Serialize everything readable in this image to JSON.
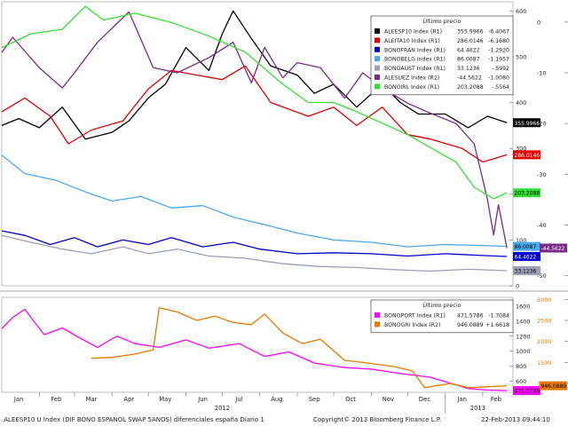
{
  "chart_data": [
    {
      "type": "line",
      "panel": "upper",
      "legend_title": "Último precio",
      "legend_position": "top-right",
      "grid": false,
      "x_ticks": [
        "Jan",
        "Feb",
        "Mar",
        "Apr",
        "May",
        "Jun",
        "Jul",
        "Aug",
        "Sep",
        "Oct",
        "Nov",
        "Dec",
        "Jan",
        "Feb"
      ],
      "y_left_ticks": [
        "600",
        "500",
        "400",
        "300",
        "200",
        "100",
        "0"
      ],
      "y_right_ticks": [
        "0",
        "-10",
        "-20",
        "-30",
        "-40",
        "-50"
      ],
      "y_left_range": [
        0,
        620
      ],
      "y_right_range": [
        -52,
        4
      ],
      "series": [
        {
          "name": ".ALEESP10 Index (R1)",
          "last": "355.9966",
          "change": "-6.4067",
          "color": "#000000",
          "axis": "R1",
          "points": [
            [
              "2012-01-01",
              350
            ],
            [
              "2012-01-15",
              365
            ],
            [
              "2012-02-01",
              345
            ],
            [
              "2012-02-20",
              390
            ],
            [
              "2012-03-10",
              320
            ],
            [
              "2012-04-01",
              335
            ],
            [
              "2012-04-15",
              360
            ],
            [
              "2012-05-01",
              410
            ],
            [
              "2012-05-15",
              440
            ],
            [
              "2012-06-01",
              520
            ],
            [
              "2012-06-20",
              470
            ],
            [
              "2012-07-01",
              550
            ],
            [
              "2012-07-10",
              600
            ],
            [
              "2012-07-25",
              540
            ],
            [
              "2012-08-10",
              480
            ],
            [
              "2012-09-01",
              460
            ],
            [
              "2012-09-15",
              420
            ],
            [
              "2012-10-01",
              440
            ],
            [
              "2012-10-20",
              390
            ],
            [
              "2012-11-10",
              440
            ],
            [
              "2012-11-25",
              400
            ],
            [
              "2012-12-10",
              375
            ],
            [
              "2013-01-01",
              375
            ],
            [
              "2013-01-20",
              345
            ],
            [
              "2013-02-05",
              370
            ],
            [
              "2013-02-21",
              356
            ]
          ]
        },
        {
          "name": ".ALEITA10 Index (R1)",
          "last": "286.0146",
          "change": "-6.1680",
          "color": "#e00000",
          "axis": "R1",
          "points": [
            [
              "2012-01-01",
              380
            ],
            [
              "2012-01-20",
              410
            ],
            [
              "2012-02-10",
              370
            ],
            [
              "2012-02-25",
              310
            ],
            [
              "2012-03-15",
              340
            ],
            [
              "2012-04-10",
              360
            ],
            [
              "2012-05-01",
              430
            ],
            [
              "2012-05-20",
              470
            ],
            [
              "2012-06-10",
              460
            ],
            [
              "2012-07-01",
              450
            ],
            [
              "2012-07-20",
              480
            ],
            [
              "2012-08-10",
              400
            ],
            [
              "2012-09-10",
              370
            ],
            [
              "2012-10-01",
              390
            ],
            [
              "2012-10-20",
              350
            ],
            [
              "2012-11-10",
              390
            ],
            [
              "2012-12-01",
              330
            ],
            [
              "2012-12-20",
              320
            ],
            [
              "2013-01-15",
              300
            ],
            [
              "2013-02-01",
              270
            ],
            [
              "2013-02-21",
              286
            ]
          ]
        },
        {
          "name": ".BONOFRAN Index (R1)",
          "last": "64.4622",
          "change": "-1.2920",
          "color": "#0000c8",
          "axis": "R1",
          "points": [
            [
              "2012-01-01",
              120
            ],
            [
              "2012-01-20",
              110
            ],
            [
              "2012-02-10",
              90
            ],
            [
              "2012-03-01",
              105
            ],
            [
              "2012-03-20",
              85
            ],
            [
              "2012-04-10",
              100
            ],
            [
              "2012-05-01",
              90
            ],
            [
              "2012-05-20",
              105
            ],
            [
              "2012-06-15",
              85
            ],
            [
              "2012-07-10",
              95
            ],
            [
              "2012-08-01",
              80
            ],
            [
              "2012-09-01",
              70
            ],
            [
              "2012-10-01",
              72
            ],
            [
              "2012-11-01",
              70
            ],
            [
              "2012-12-01",
              65
            ],
            [
              "2013-01-01",
              70
            ],
            [
              "2013-02-01",
              66
            ],
            [
              "2013-02-21",
              64
            ]
          ]
        },
        {
          "name": ".BONOBELG Index (R1)",
          "last": "86.0087",
          "change": "-1.1957",
          "color": "#4aa8f0",
          "axis": "R1",
          "points": [
            [
              "2012-01-01",
              285
            ],
            [
              "2012-01-20",
              245
            ],
            [
              "2012-02-15",
              230
            ],
            [
              "2012-03-10",
              205
            ],
            [
              "2012-04-01",
              185
            ],
            [
              "2012-04-25",
              195
            ],
            [
              "2012-05-20",
              170
            ],
            [
              "2012-06-15",
              175
            ],
            [
              "2012-07-10",
              150
            ],
            [
              "2012-08-10",
              130
            ],
            [
              "2012-09-01",
              115
            ],
            [
              "2012-10-01",
              100
            ],
            [
              "2012-11-01",
              95
            ],
            [
              "2012-12-01",
              85
            ],
            [
              "2013-01-01",
              90
            ],
            [
              "2013-02-01",
              88
            ],
            [
              "2013-02-21",
              86
            ]
          ]
        },
        {
          "name": ".BONOAUST Index (R1)",
          "last": "33.1236",
          "change": "-.5992",
          "color": "#9e9eb8",
          "axis": "R1",
          "points": [
            [
              "2012-01-01",
              110
            ],
            [
              "2012-01-25",
              95
            ],
            [
              "2012-02-20",
              80
            ],
            [
              "2012-03-15",
              70
            ],
            [
              "2012-04-10",
              85
            ],
            [
              "2012-05-01",
              70
            ],
            [
              "2012-05-25",
              80
            ],
            [
              "2012-06-20",
              65
            ],
            [
              "2012-07-20",
              60
            ],
            [
              "2012-08-20",
              48
            ],
            [
              "2012-09-20",
              42
            ],
            [
              "2012-10-20",
              40
            ],
            [
              "2012-11-20",
              35
            ],
            [
              "2012-12-20",
              32
            ],
            [
              "2013-01-20",
              36
            ],
            [
              "2013-02-21",
              33
            ]
          ]
        },
        {
          "name": ".ALESUEZ Index (R2)",
          "last": "-44.5622",
          "change": "-1.0080",
          "color": "#7a2a8a",
          "axis": "R2",
          "points": [
            [
              "2012-01-01",
              -6
            ],
            [
              "2012-01-10",
              -3
            ],
            [
              "2012-02-01",
              -9
            ],
            [
              "2012-02-20",
              -13
            ],
            [
              "2012-03-01",
              -10
            ],
            [
              "2012-03-20",
              -4
            ],
            [
              "2012-04-15",
              2
            ],
            [
              "2012-05-05",
              -9
            ],
            [
              "2012-05-25",
              -10
            ],
            [
              "2012-06-20",
              -7
            ],
            [
              "2012-07-10",
              -4
            ],
            [
              "2012-07-25",
              -12
            ],
            [
              "2012-08-05",
              -5
            ],
            [
              "2012-08-20",
              -11
            ],
            [
              "2012-09-01",
              -8
            ],
            [
              "2012-09-20",
              -9
            ],
            [
              "2012-10-10",
              -15
            ],
            [
              "2012-10-25",
              -10
            ],
            [
              "2012-11-10",
              -13
            ],
            [
              "2012-12-01",
              -16
            ],
            [
              "2012-12-20",
              -18
            ],
            [
              "2013-01-10",
              -20
            ],
            [
              "2013-01-25",
              -24
            ],
            [
              "2013-02-05",
              -35
            ],
            [
              "2013-02-10",
              -42
            ],
            [
              "2013-02-14",
              -36
            ],
            [
              "2013-02-21",
              -44.56
            ]
          ]
        },
        {
          "name": ".BONOIRL Index (R1)",
          "last": "203.2088",
          "change": "-.5564",
          "color": "#33e033",
          "axis": "R1",
          "points": [
            [
              "2012-01-01",
              520
            ],
            [
              "2012-01-25",
              550
            ],
            [
              "2012-02-20",
              560
            ],
            [
              "2012-03-10",
              610
            ],
            [
              "2012-03-25",
              580
            ],
            [
              "2012-04-20",
              595
            ],
            [
              "2012-05-20",
              575
            ],
            [
              "2012-06-20",
              545
            ],
            [
              "2012-07-20",
              510
            ],
            [
              "2012-08-20",
              440
            ],
            [
              "2012-09-10",
              400
            ],
            [
              "2012-10-01",
              400
            ],
            [
              "2012-10-20",
              380
            ],
            [
              "2012-11-10",
              355
            ],
            [
              "2012-12-01",
              330
            ],
            [
              "2013-01-10",
              270
            ],
            [
              "2013-01-25",
              215
            ],
            [
              "2013-02-10",
              190
            ],
            [
              "2013-02-21",
              203
            ]
          ]
        }
      ]
    },
    {
      "type": "line",
      "panel": "lower",
      "legend_title": "Último precio",
      "legend_position": "top-right",
      "grid": false,
      "y_left_ticks": [
        "1600",
        "1400",
        "1200",
        "1000",
        "800",
        "600"
      ],
      "y_right_ticks": [
        "3000",
        "2500",
        "2000",
        "1500",
        "1000"
      ],
      "y_left_range": [
        450,
        1720
      ],
      "y_right_range": [
        790,
        3050
      ],
      "series": [
        {
          "name": ".BONOPORT Index (R1)",
          "last": "471.5786",
          "change": "-1.7084",
          "color": "#ff00ff",
          "axis": "R1",
          "points": [
            [
              "2012-01-01",
              1300
            ],
            [
              "2012-01-10",
              1450
            ],
            [
              "2012-01-20",
              1560
            ],
            [
              "2012-02-05",
              1220
            ],
            [
              "2012-02-20",
              1310
            ],
            [
              "2012-03-05",
              1180
            ],
            [
              "2012-03-20",
              1050
            ],
            [
              "2012-04-05",
              1200
            ],
            [
              "2012-04-20",
              1100
            ],
            [
              "2012-05-10",
              1050
            ],
            [
              "2012-06-01",
              1150
            ],
            [
              "2012-06-20",
              1040
            ],
            [
              "2012-07-15",
              1100
            ],
            [
              "2012-08-05",
              930
            ],
            [
              "2012-08-25",
              990
            ],
            [
              "2012-09-15",
              840
            ],
            [
              "2012-10-10",
              780
            ],
            [
              "2012-11-01",
              760
            ],
            [
              "2012-11-25",
              700
            ],
            [
              "2012-12-20",
              650
            ],
            [
              "2013-01-20",
              500
            ],
            [
              "2013-02-05",
              480
            ],
            [
              "2013-02-21",
              472
            ]
          ]
        },
        {
          "name": ".BONOGRI Index (R2)",
          "last": "946.0889",
          "change": "+1.6618",
          "color": "#e87800",
          "axis": "R2",
          "points": [
            [
              "2012-03-15",
              1600
            ],
            [
              "2012-04-01",
              1620
            ],
            [
              "2012-04-20",
              1700
            ],
            [
              "2012-05-05",
              1800
            ],
            [
              "2012-05-10",
              2800
            ],
            [
              "2012-05-25",
              2700
            ],
            [
              "2012-06-10",
              2500
            ],
            [
              "2012-06-25",
              2600
            ],
            [
              "2012-07-10",
              2450
            ],
            [
              "2012-07-25",
              2400
            ],
            [
              "2012-08-05",
              2650
            ],
            [
              "2012-08-20",
              2200
            ],
            [
              "2012-09-05",
              1950
            ],
            [
              "2012-09-20",
              2050
            ],
            [
              "2012-10-10",
              1550
            ],
            [
              "2012-10-25",
              1500
            ],
            [
              "2012-11-20",
              1400
            ],
            [
              "2012-12-05",
              1300
            ],
            [
              "2012-12-15",
              900
            ],
            [
              "2013-01-05",
              1000
            ],
            [
              "2013-01-20",
              900
            ],
            [
              "2013-02-05",
              920
            ],
            [
              "2013-02-21",
              946
            ]
          ]
        }
      ]
    }
  ],
  "x_axis": {
    "months": [
      "Jan",
      "Feb",
      "Mar",
      "Apr",
      "May",
      "Jun",
      "Jul",
      "Aug",
      "Sep",
      "Oct",
      "Nov",
      "Dec",
      "Jan",
      "Feb"
    ],
    "years": [
      "2012",
      "2013"
    ]
  },
  "footer": {
    "left": ".ALEESP10 U Index (DIF BONO ESPANOL SWAP 5ANOS) diferenciales españa  Diario 1",
    "center": "Copyright© 2013 Bloomberg Finance L.P.",
    "right": "22-Feb-2013 09:44:10"
  }
}
